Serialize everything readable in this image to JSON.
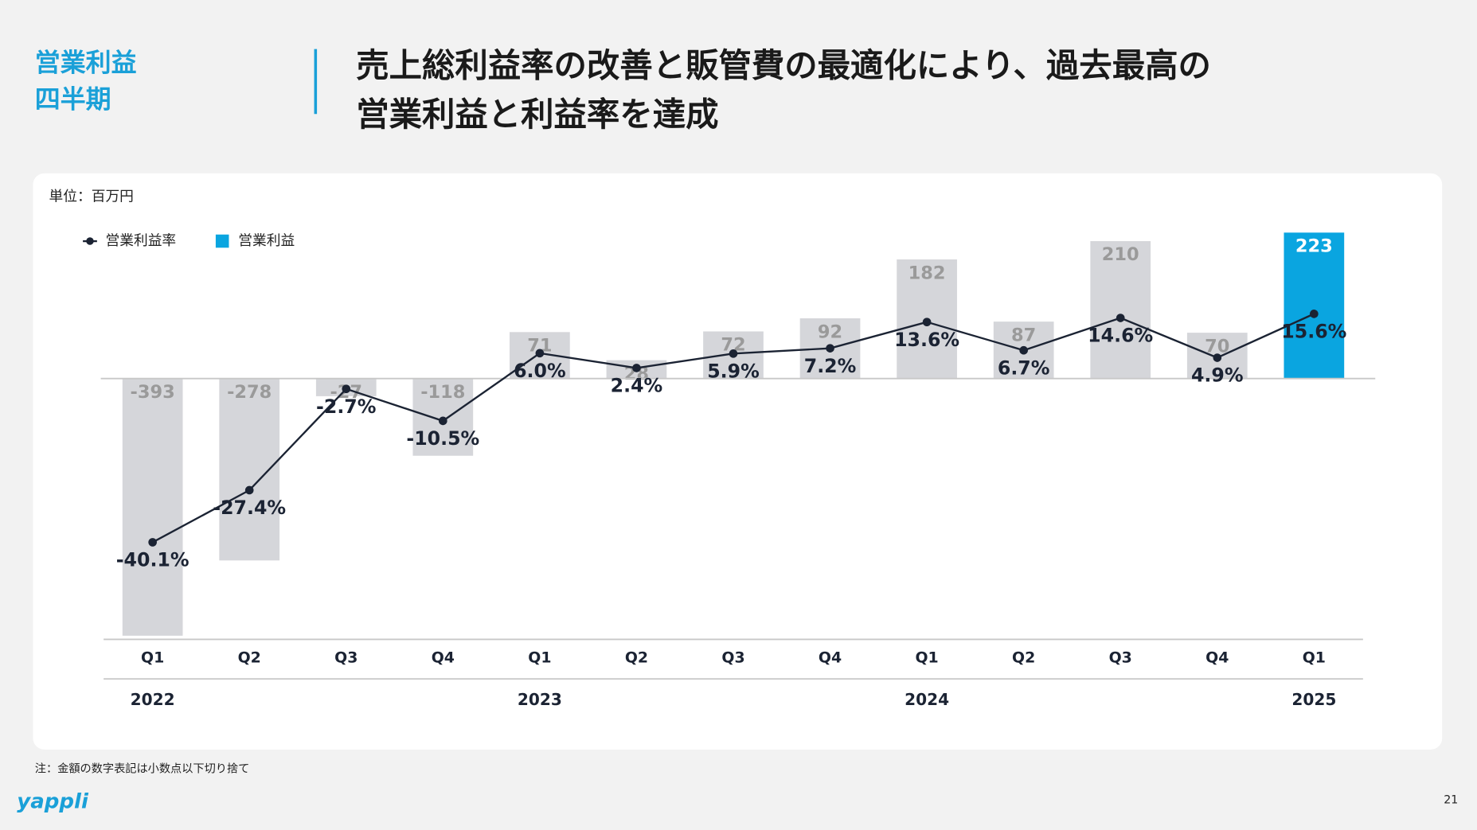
{
  "header": {
    "section": [
      "営業利益",
      "四半期"
    ],
    "title": [
      "売上総利益率の改善と販管費の最適化により、過去最高の",
      "営業利益と利益率を達成"
    ]
  },
  "chart_data": {
    "type": "bar",
    "unit_note": "単位：百万円",
    "categories": [
      "Q1",
      "Q2",
      "Q3",
      "Q4",
      "Q1",
      "Q2",
      "Q3",
      "Q4",
      "Q1",
      "Q2",
      "Q3",
      "Q4",
      "Q1"
    ],
    "year_labels": [
      "2022",
      null,
      null,
      null,
      "2023",
      null,
      null,
      null,
      "2024",
      null,
      null,
      null,
      "2025"
    ],
    "series": [
      {
        "name": "営業利益",
        "type": "bar",
        "color": "#0aa5e0",
        "bar_colors": [
          "#d5d6da",
          "#d5d6da",
          "#d5d6da",
          "#d5d6da",
          "#d5d6da",
          "#d5d6da",
          "#d5d6da",
          "#d5d6da",
          "#d5d6da",
          "#d5d6da",
          "#d5d6da",
          "#d5d6da",
          "#0aa5e0"
        ],
        "values": [
          -393,
          -278,
          -27,
          -118,
          71,
          28,
          72,
          92,
          182,
          87,
          210,
          70,
          223
        ]
      },
      {
        "name": "営業利益率",
        "type": "line",
        "axis": "y2",
        "color": "#1b2333",
        "values": [
          -40.1,
          -27.4,
          -2.7,
          -10.5,
          6.0,
          2.4,
          5.9,
          7.2,
          13.6,
          6.7,
          14.6,
          4.9,
          15.6
        ],
        "value_labels": [
          "-40.1%",
          "-27.4%",
          "-2.7%",
          "-10.5%",
          "6.0%",
          "2.4%",
          "5.9%",
          "7.2%",
          "13.6%",
          "6.7%",
          "14.6%",
          "4.9%",
          "15.6%"
        ]
      }
    ],
    "ylim": [
      -400,
      233
    ],
    "y2lim": [
      -64,
      37
    ],
    "legend": "top-left"
  },
  "footer": {
    "note": "注：金額の数字表記は小数点以下切り捨て",
    "page": "21",
    "logo": "yappli"
  }
}
